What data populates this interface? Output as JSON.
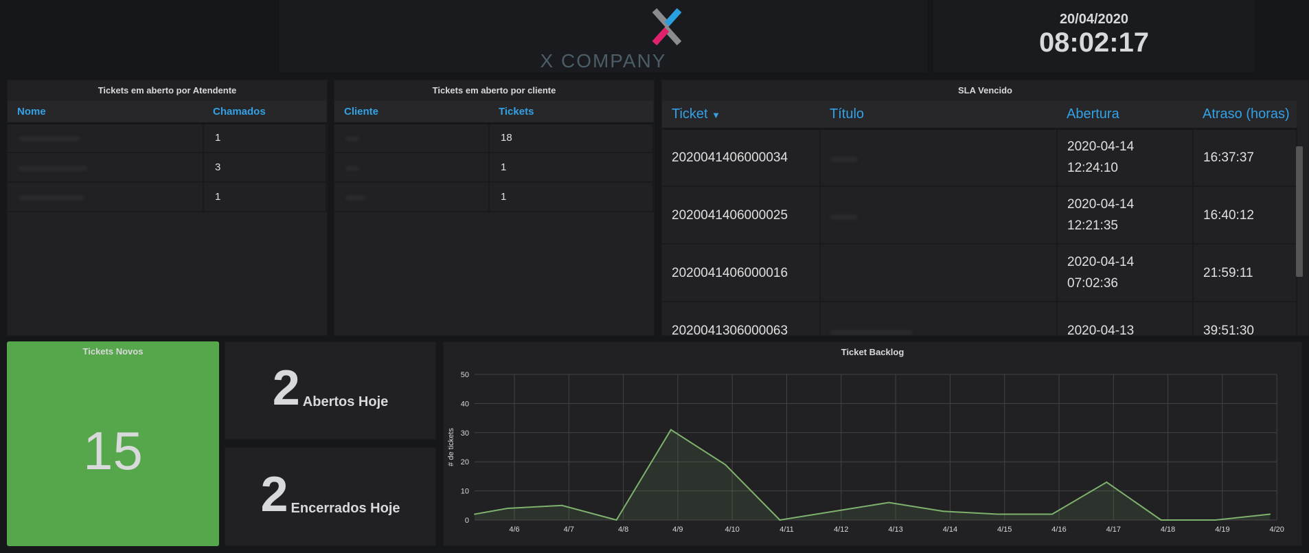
{
  "logo": {
    "text": "X COMPANY"
  },
  "clock": {
    "date": "20/04/2020",
    "time": "08:02:17"
  },
  "atendente": {
    "title": "Tickets em aberto por Atendente",
    "columns": [
      "Nome",
      "Chamados"
    ],
    "rows": [
      {
        "count": "1"
      },
      {
        "count": "3"
      },
      {
        "count": "1"
      }
    ]
  },
  "cliente": {
    "title": "Tickets em aberto por cliente",
    "columns": [
      "Cliente",
      "Tickets"
    ],
    "rows": [
      {
        "count": "18"
      },
      {
        "count": "1"
      },
      {
        "count": "1"
      }
    ]
  },
  "sla": {
    "title": "SLA Vencido",
    "columns": [
      "Ticket",
      "Título",
      "Abertura",
      "Atraso (horas)"
    ],
    "sort_icon": "caret-down-icon",
    "rows": [
      {
        "ticket": "2020041406000034",
        "date": "2020-04-14",
        "time": "12:24:10",
        "atraso": "16:37:37"
      },
      {
        "ticket": "2020041406000025",
        "date": "2020-04-14",
        "time": "12:21:35",
        "atraso": "16:40:12"
      },
      {
        "ticket": "2020041406000016",
        "date": "2020-04-14",
        "time": "07:02:36",
        "atraso": "21:59:11"
      },
      {
        "ticket": "2020041306000063",
        "date": "2020-04-13",
        "time": "",
        "atraso": "39:51:30"
      }
    ]
  },
  "novos": {
    "title": "Tickets Novos",
    "value": "15",
    "color": "#56a64b"
  },
  "abertos": {
    "value": "2",
    "label": "Abertos Hoje"
  },
  "encerrados": {
    "value": "2",
    "label": "Encerrados Hoje"
  },
  "chart_data": {
    "type": "area",
    "title": "Ticket Backlog",
    "ylabel": "# de tickets",
    "xlabel": "",
    "ylim": [
      0,
      50
    ],
    "yticks": [
      0,
      10,
      20,
      30,
      40,
      50
    ],
    "xticks": [
      "4/6",
      "4/7",
      "4/8",
      "4/9",
      "4/10",
      "4/11",
      "4/12",
      "4/13",
      "4/14",
      "4/15",
      "4/16",
      "4/17",
      "4/18",
      "4/19",
      "4/20"
    ],
    "x": [
      "4/5",
      "4/6",
      "4/7",
      "4/8",
      "4/9",
      "4/10",
      "4/11",
      "4/12",
      "4/13",
      "4/14",
      "4/15",
      "4/16",
      "4/17",
      "4/18",
      "4/19",
      "4/20"
    ],
    "values": [
      2,
      4,
      5,
      0,
      31,
      19,
      0,
      3,
      6,
      3,
      2,
      2,
      13,
      0,
      0,
      2
    ],
    "grid": true,
    "color": "#7eb26d"
  }
}
